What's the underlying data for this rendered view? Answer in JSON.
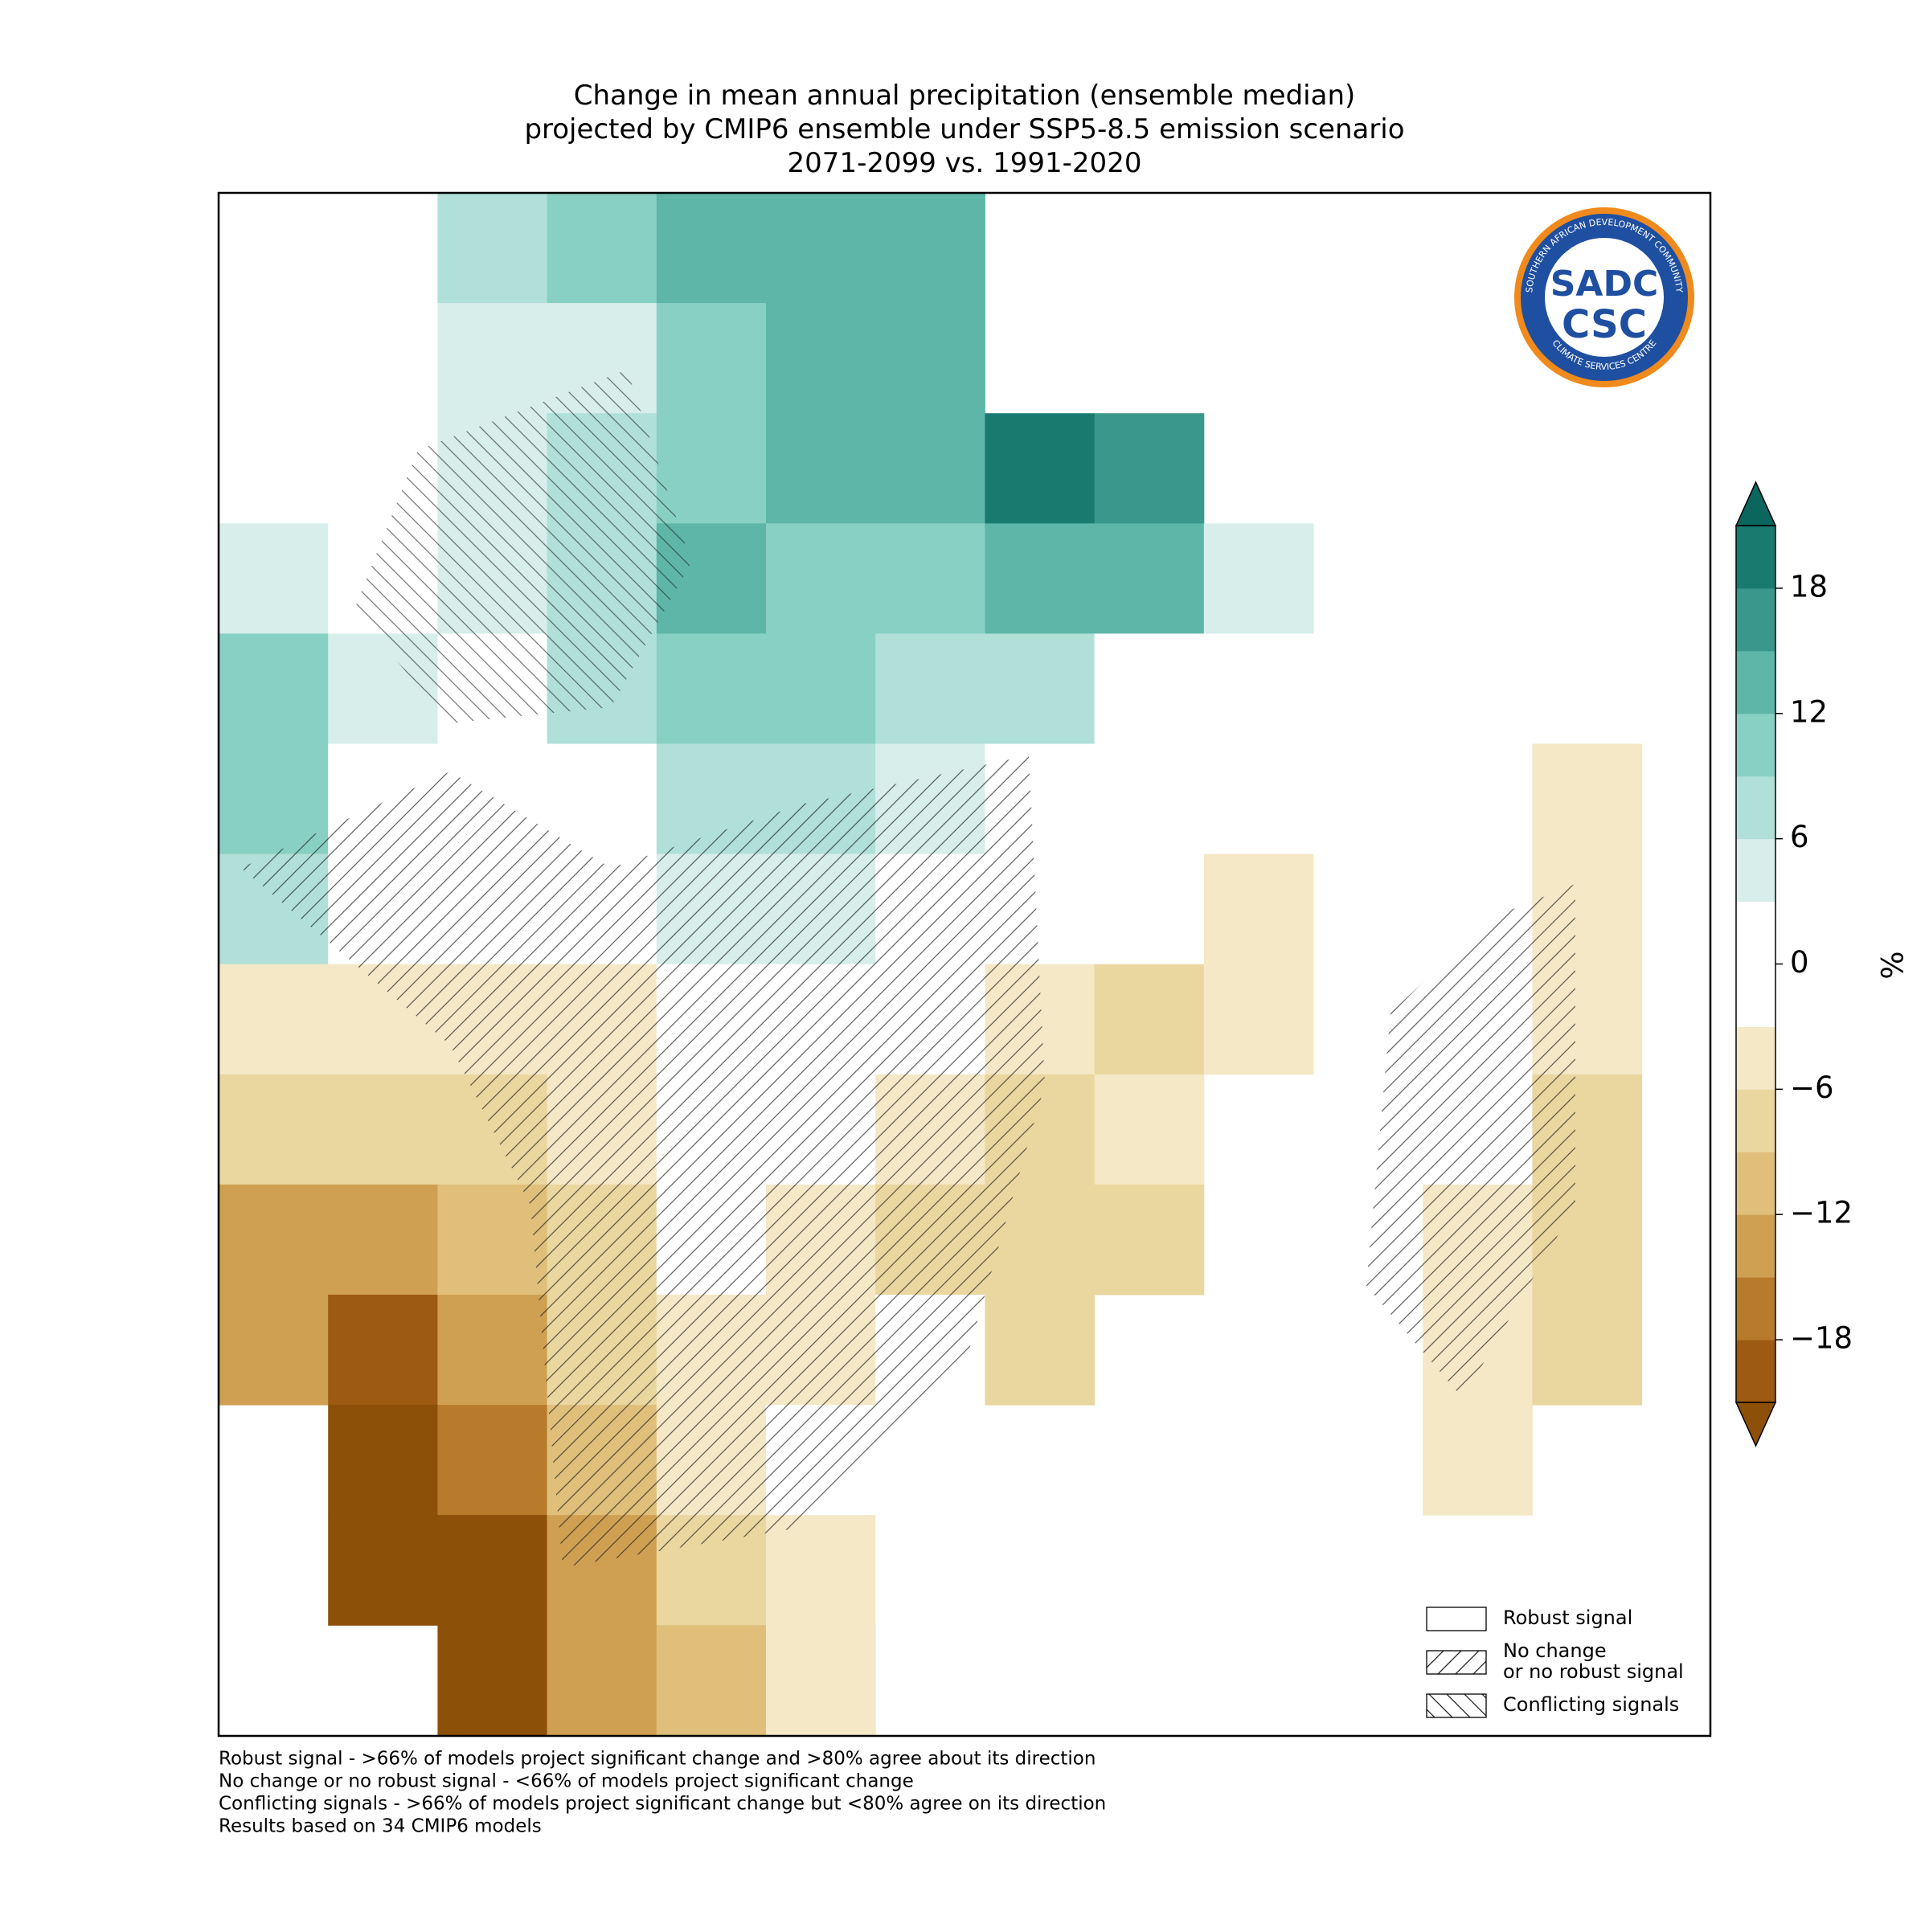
{
  "chart_data": {
    "type": "map",
    "title": [
      "Change in mean annual precipitation (ensemble median)",
      "projected by CMIP6 ensemble under SSP5-8.5 emission scenario",
      "2071-2099 vs. 1991-2020"
    ],
    "grid": {
      "values": [
        [
          null,
          null,
          8,
          10,
          13,
          13,
          14,
          null,
          null,
          null,
          null,
          null,
          null
        ],
        [
          null,
          null,
          4,
          6,
          11,
          14,
          14,
          null,
          null,
          null,
          null,
          null,
          null
        ],
        [
          null,
          2,
          4,
          7,
          12,
          13,
          14,
          20,
          16,
          null,
          null,
          null,
          null
        ],
        [
          6,
          3,
          6,
          8,
          13,
          12,
          10,
          14,
          15,
          5,
          null,
          null,
          null
        ],
        [
          10,
          4,
          3,
          8,
          10,
          11,
          9,
          7,
          2,
          0,
          null,
          null,
          null
        ],
        [
          12,
          2,
          0,
          2,
          8,
          8,
          5,
          0,
          0,
          0,
          null,
          null,
          -3
        ],
        [
          8,
          0,
          -2,
          0,
          4,
          4,
          2,
          0,
          -2,
          -3,
          null,
          null,
          -4
        ],
        [
          -4,
          -5,
          -4,
          -3,
          0,
          0,
          0,
          -4,
          -7,
          -5,
          null,
          0,
          -4
        ],
        [
          -7,
          -8,
          -6,
          -4,
          0,
          0,
          -5,
          -7,
          -4,
          null,
          0,
          2,
          -6
        ],
        [
          -12,
          -13,
          -9,
          -6,
          -2,
          -5,
          -7,
          -6,
          -6,
          null,
          0,
          -3,
          -8
        ],
        [
          -14,
          -20,
          -12,
          -7,
          -5,
          -3,
          -2,
          -6,
          null,
          null,
          0,
          -4,
          -7
        ],
        [
          null,
          -21,
          -16,
          -10,
          -4,
          0,
          -1,
          null,
          null,
          null,
          null,
          -3,
          null
        ],
        [
          null,
          -21,
          -21,
          -13,
          -7,
          -3,
          -1,
          null,
          null,
          null,
          null,
          null,
          null
        ],
        [
          null,
          null,
          -21,
          -14,
          -9,
          -4,
          null,
          null,
          null,
          null,
          null,
          null,
          null
        ]
      ]
    },
    "colorbar": {
      "levels": [
        -21,
        -18,
        -15,
        -12,
        -9,
        -6,
        -3,
        0,
        3,
        6,
        9,
        12,
        15,
        18,
        21
      ],
      "colors": [
        "#9c5a12",
        "#b87a2b",
        "#cfa052",
        "#dfbf7a",
        "#ead69f",
        "#f4e8c6",
        "#ffffff",
        "#ffffff",
        "#d7eeea",
        "#b0e0d8",
        "#88d0c3",
        "#5db6a8",
        "#3a978b",
        "#197a70"
      ],
      "under_color": "#8c5009",
      "over_color": "#0b665e",
      "ticks": [
        {
          "value": -18,
          "label": "−18"
        },
        {
          "value": -12,
          "label": "−12"
        },
        {
          "value": -6,
          "label": "−6"
        },
        0,
        6,
        12,
        18
      ],
      "label": "%"
    },
    "legend": [
      {
        "label": [
          "Robust signal"
        ],
        "hatch": "none"
      },
      {
        "label": [
          "No change",
          "or no robust signal"
        ],
        "hatch": "forward"
      },
      {
        "label": [
          "Conflicting signals"
        ],
        "hatch": "back"
      }
    ],
    "footnotes": [
      "Robust signal - >66% of models project significant change and >80% agree about its direction",
      "No change or no robust signal - <66% of models project significant change",
      "Conflicting signals - >66% of models project significant change but <80% agree on its direction",
      "Results based on 34 CMIP6 models"
    ],
    "logo": {
      "top": "SADC",
      "bottom": "CSC",
      "ring_top": "SOUTHERN AFRICAN DEVELOPMENT COMMUNITY",
      "ring_bottom": "CLIMATE SERVICES CENTRE"
    }
  }
}
